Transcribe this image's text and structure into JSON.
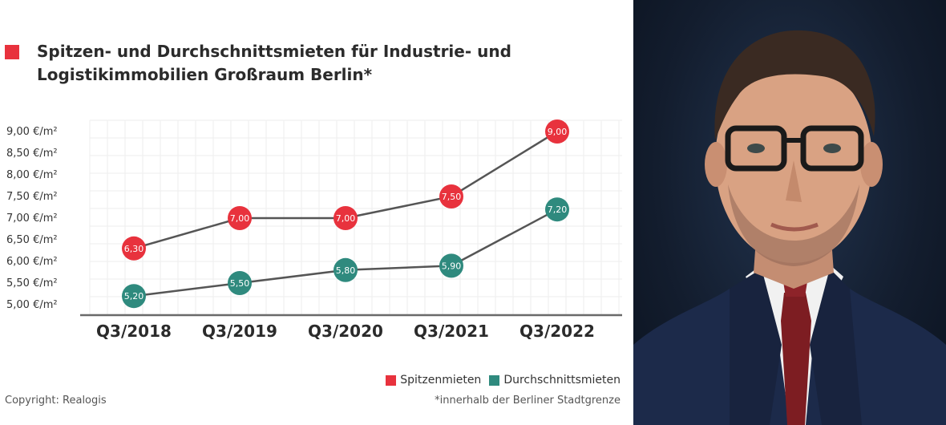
{
  "title_lines": [
    "Spitzen- und Durchschnittsmieten für Industrie- und",
    "Logistikimmobilien Großraum Berlin*"
  ],
  "colors": {
    "spitzen": "#e8323d",
    "durchschnitt": "#2f8a7e",
    "line": "#555555",
    "grid": "#ededed"
  },
  "legend": {
    "spitzen_label": "Spitzenmieten",
    "durchschnitt_label": "Durchschnittsmieten"
  },
  "copyright": "Copyright: Realogis",
  "footnote": "*innerhalb der Berliner Stadtgrenze",
  "chart_data": {
    "type": "line",
    "title": "Spitzen- und Durchschnittsmieten für Industrie- und Logistikimmobilien Großraum Berlin*",
    "categories": [
      "Q3/2018",
      "Q3/2019",
      "Q3/2020",
      "Q3/2021",
      "Q3/2022"
    ],
    "y_tick_values": [
      9.0,
      8.5,
      8.0,
      7.5,
      7.0,
      6.5,
      6.0,
      5.5,
      5.0
    ],
    "y_tick_labels": [
      "9,00 €/m²",
      "8,50 €/m²",
      "8,00 €/m²",
      "7,50 €/m²",
      "7,00 €/m²",
      "6,50 €/m²",
      "6,00 €/m²",
      "5,50 €/m²",
      "5,00 €/m²"
    ],
    "ylim": [
      5.0,
      9.0
    ],
    "grid": true,
    "legend_position": "bottom-right",
    "series": [
      {
        "name": "Spitzenmieten",
        "values": [
          6.3,
          7.0,
          7.0,
          7.5,
          9.0
        ],
        "labels": [
          "6,30",
          "7,00",
          "7,00",
          "7,50",
          "9,00"
        ]
      },
      {
        "name": "Durchschnittsmieten",
        "values": [
          5.2,
          5.5,
          5.8,
          5.9,
          7.2
        ],
        "labels": [
          "5,20",
          "5,50",
          "5,80",
          "5,90",
          "7,20"
        ]
      }
    ]
  },
  "photo": {
    "description_icon": "portrait-photo"
  }
}
